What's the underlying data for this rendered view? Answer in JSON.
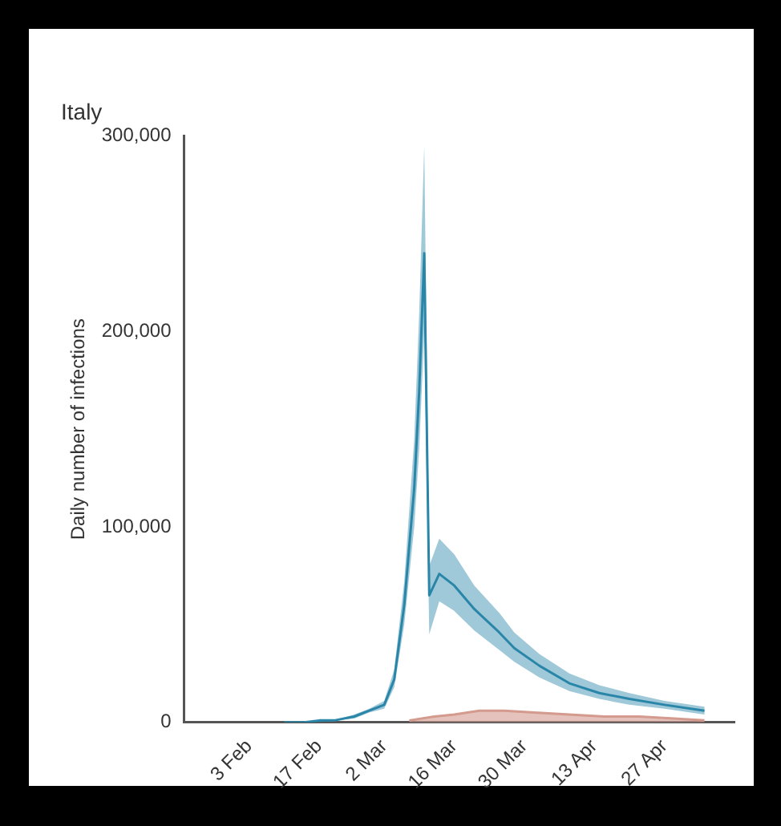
{
  "chart_data": {
    "type": "line",
    "title": "Italy",
    "ylabel": "Daily number of infections",
    "xlim": [
      "--01-21",
      "--05-11"
    ],
    "xticks": [
      {
        "value": "--02-03",
        "label": "3 Feb"
      },
      {
        "value": "--02-17",
        "label": "17 Feb"
      },
      {
        "value": "--03-02",
        "label": "2 Mar"
      },
      {
        "value": "--03-16",
        "label": "16 Mar"
      },
      {
        "value": "--03-30",
        "label": "30 Mar"
      },
      {
        "value": "--04-13",
        "label": "13 Apr"
      },
      {
        "value": "--04-27",
        "label": "27 Apr"
      }
    ],
    "ylim": [
      0,
      300000
    ],
    "yticks": [
      {
        "value": 0,
        "label": "0"
      },
      {
        "value": 100000,
        "label": "100,000"
      },
      {
        "value": 200000,
        "label": "200,000"
      },
      {
        "value": 300000,
        "label": "300,000"
      }
    ],
    "grid": false,
    "legend": false,
    "marker": "none",
    "line_style": "solid",
    "series": [
      {
        "color": "#2a86a8",
        "x": [
          "--02-10",
          "--02-14",
          "--02-17",
          "--02-20",
          "--02-24",
          "--02-27",
          "--03-02",
          "--03-04",
          "--03-06",
          "--03-08",
          "--03-09",
          "--03-10",
          "--03-11",
          "--03-13",
          "--03-16",
          "--03-20",
          "--03-25",
          "--03-28",
          "--04-02",
          "--04-08",
          "--04-14",
          "--04-20",
          "--04-27",
          "--05-05"
        ],
        "values": [
          0,
          0,
          1000,
          1000,
          3000,
          6000,
          9000,
          22000,
          60000,
          120000,
          170000,
          240000,
          65000,
          76000,
          70000,
          58000,
          46000,
          38000,
          29000,
          20000,
          15000,
          12000,
          9000,
          6000
        ],
        "lower": [
          0,
          0,
          0,
          1000,
          2000,
          5000,
          7000,
          18000,
          50000,
          100000,
          140000,
          200000,
          45000,
          62000,
          57000,
          47000,
          37000,
          31000,
          23000,
          16000,
          12000,
          9000,
          7000,
          4000
        ],
        "upper": [
          0,
          0,
          1000,
          1000,
          4000,
          7000,
          11000,
          27000,
          72000,
          145000,
          210000,
          295000,
          80000,
          94000,
          86000,
          70000,
          56000,
          46000,
          35000,
          25000,
          19000,
          15000,
          11000,
          8000
        ]
      },
      {
        "type": "area",
        "color": "#d49a8e",
        "x": [
          "--03-07",
          "--03-12",
          "--03-16",
          "--03-21",
          "--03-26",
          "--04-01",
          "--04-08",
          "--04-15",
          "--04-22",
          "--04-29",
          "--05-05"
        ],
        "values": [
          1000,
          3000,
          4000,
          6000,
          6000,
          5000,
          4000,
          3000,
          3000,
          2000,
          1000
        ]
      }
    ]
  }
}
